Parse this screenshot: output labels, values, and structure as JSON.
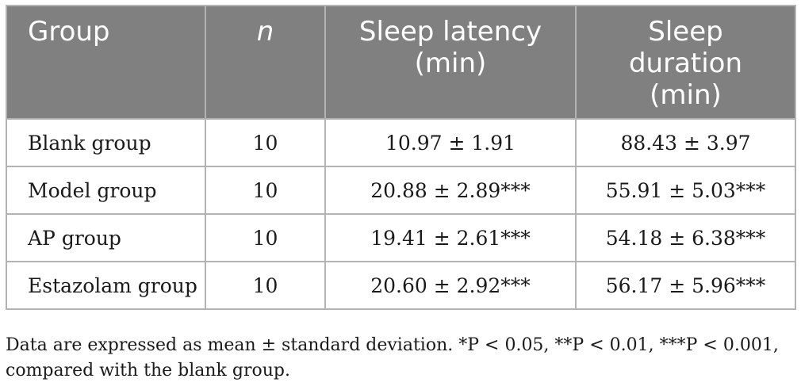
{
  "table": {
    "headers": {
      "group": "Group",
      "n": "n",
      "latency_line1": "Sleep latency",
      "latency_line2": "(min)",
      "duration_line1": "Sleep",
      "duration_line2": "duration",
      "duration_line3": "(min)"
    },
    "rows": [
      {
        "group": "Blank group",
        "n": "10",
        "latency": "10.97 ± 1.91",
        "duration": "88.43 ± 3.97"
      },
      {
        "group": "Model group",
        "n": "10",
        "latency": "20.88 ± 2.89***",
        "duration": "55.91 ± 5.03***"
      },
      {
        "group": "AP group",
        "n": "10",
        "latency": "19.41 ± 2.61***",
        "duration": "54.18 ± 6.38***"
      },
      {
        "group": "Estazolam group",
        "n": "10",
        "latency": "20.60 ± 2.92***",
        "duration": "56.17 ± 5.96***"
      }
    ]
  },
  "footnote": {
    "line1": "Data are expressed as mean ± standard deviation. *P < 0.05, **P < 0.01, ***P < 0.001,",
    "line2": "compared with the blank group."
  },
  "colors": {
    "header_bg": "#808080",
    "header_text": "#ffffff",
    "border": "#b3b3b3"
  }
}
